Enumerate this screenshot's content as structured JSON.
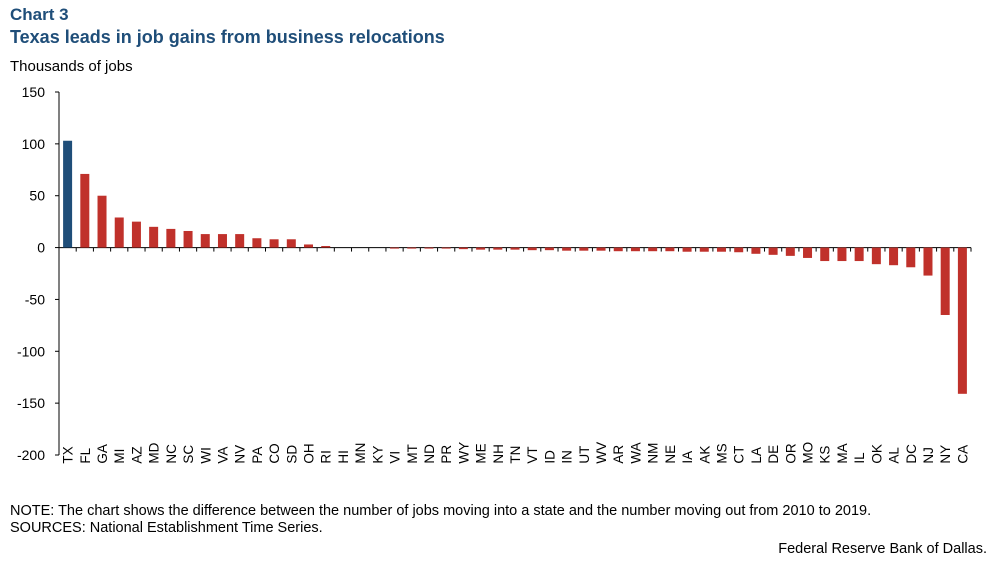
{
  "header": {
    "chart_number": "Chart 3",
    "title": "Texas leads in job gains from business relocations"
  },
  "footer": {
    "note": "NOTE: The chart shows the difference between the number of jobs moving into a state and the number moving out from 2010 to 2019.",
    "sources": "SOURCES: National Establishment Time Series.",
    "credit": "Federal Reserve Bank of Dallas."
  },
  "chart_data": {
    "type": "bar",
    "title": "Texas leads in job gains from business relocations",
    "ylabel": "Thousands  of jobs",
    "xlabel": "",
    "ylim": [
      -200,
      150
    ],
    "yticks": [
      150,
      100,
      50,
      0,
      -50,
      -100,
      -150,
      -200
    ],
    "grid": false,
    "highlight_color": "#1f4e79",
    "bar_color": "#c0312b",
    "categories": [
      "TX",
      "FL",
      "GA",
      "MI",
      "AZ",
      "MD",
      "NC",
      "SC",
      "WI",
      "VA",
      "NV",
      "PA",
      "CO",
      "SD",
      "OH",
      "RI",
      "HI",
      "MN",
      "KY",
      "VI",
      "MT",
      "ND",
      "PR",
      "WY",
      "ME",
      "NH",
      "TN",
      "VT",
      "ID",
      "IN",
      "UT",
      "WV",
      "AR",
      "WA",
      "NM",
      "NE",
      "IA",
      "AK",
      "MS",
      "CT",
      "LA",
      "DE",
      "OR",
      "MO",
      "KS",
      "MA",
      "IL",
      "OK",
      "AL",
      "DC",
      "NJ",
      "NY",
      "CA"
    ],
    "values": [
      103,
      71,
      50,
      29,
      25,
      20,
      18,
      16,
      13,
      13,
      13,
      9,
      8,
      8,
      3,
      1.5,
      0,
      0,
      0,
      -1,
      -1,
      -1,
      -1,
      -1.5,
      -2,
      -2,
      -2,
      -2.5,
      -2.5,
      -3,
      -3,
      -3,
      -3.5,
      -3.5,
      -3.5,
      -3.5,
      -4,
      -4,
      -4,
      -4.5,
      -6,
      -7,
      -8,
      -10,
      -13,
      -13,
      -13,
      -16,
      -17,
      -19,
      -27,
      -65,
      -141
    ],
    "highlight": [
      "TX"
    ]
  }
}
